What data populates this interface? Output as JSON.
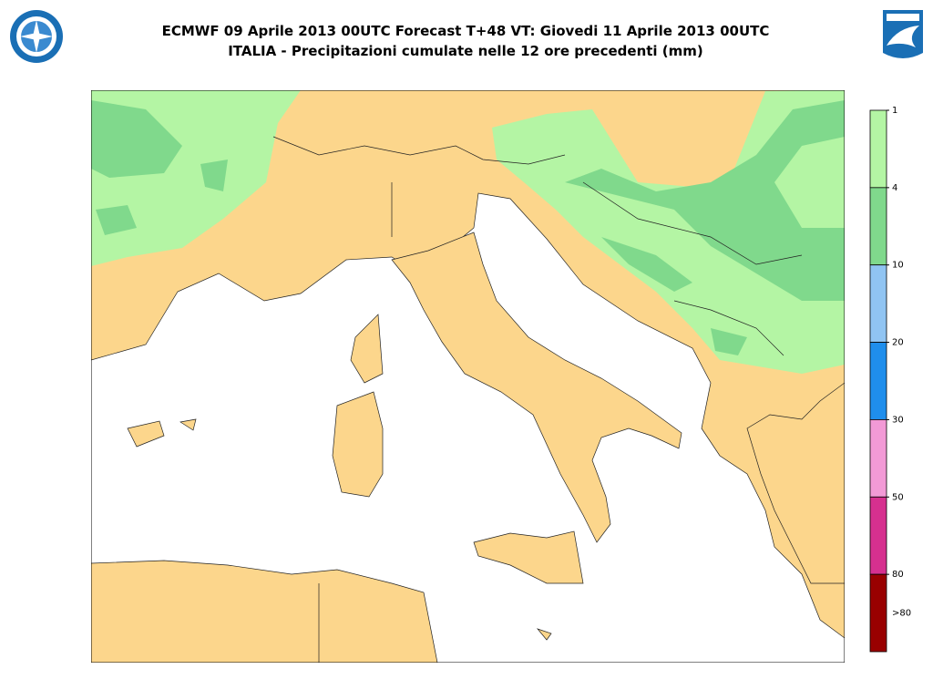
{
  "header": {
    "title": "ECMWF 09 Aprile 2013 00UTC Forecast T+48 VT: Giovedi 11 Aprile 2013 00UTC",
    "subtitle": "ITALIA - Precipitazioni cumulate nelle 12 ore precedenti (mm)"
  },
  "legend": {
    "ticks": [
      1,
      4,
      10,
      20,
      30,
      50,
      80
    ],
    "overflow_label": ">80",
    "colors": [
      "#b4f5a4",
      "#80d98c",
      "#90c4f2",
      "#1f8eec",
      "#f29ad6",
      "#d6308f",
      "#990000"
    ]
  }
}
